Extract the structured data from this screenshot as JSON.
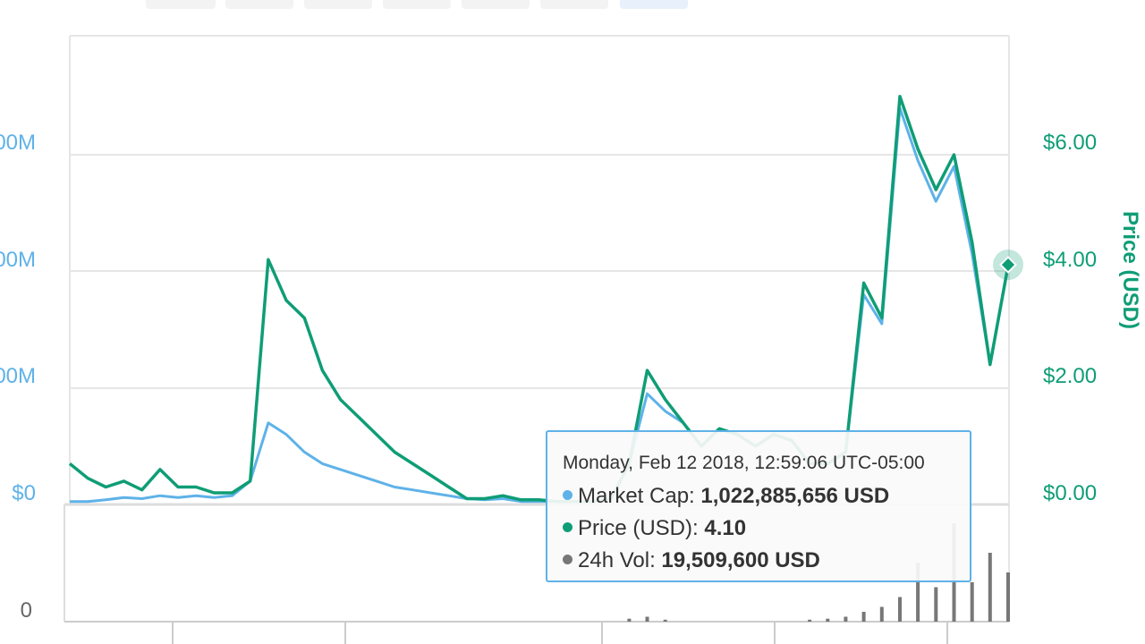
{
  "chart_data": {
    "type": "line",
    "left_axis": {
      "ticks": [
        "00M",
        "00M",
        "00M",
        "$0"
      ],
      "values": [
        null,
        null,
        null,
        0
      ]
    },
    "right_axis": {
      "title": "Price (USD)",
      "ticks": [
        "$6.00",
        "$4.00",
        "$2.00",
        "$0.00"
      ],
      "values": [
        6,
        4,
        2,
        0
      ],
      "ylim": [
        0,
        6
      ]
    },
    "volume_axis": {
      "ticks": [
        "0"
      ]
    },
    "series": [
      {
        "name": "Price (USD)",
        "color": "#0f9d76",
        "values": [
          0.7,
          0.45,
          0.3,
          0.4,
          0.25,
          0.6,
          0.3,
          0.3,
          0.2,
          0.2,
          0.4,
          4.2,
          3.5,
          3.2,
          2.3,
          1.8,
          1.5,
          1.2,
          0.9,
          0.7,
          0.5,
          0.3,
          0.1,
          0.1,
          0.15,
          0.08,
          0.08,
          0.05,
          0.05,
          0.05,
          0.1,
          0.7,
          2.3,
          1.8,
          1.4,
          1.0,
          1.3,
          1.2,
          1.0,
          1.2,
          1.1,
          0.7,
          0.7,
          0.9,
          3.8,
          3.2,
          7.0,
          6.1,
          5.4,
          6.0,
          4.5,
          2.4,
          4.1
        ]
      },
      {
        "name": "Market Cap",
        "color": "#5eb2e8",
        "values": [
          0.05,
          0.05,
          0.08,
          0.12,
          0.1,
          0.15,
          0.12,
          0.15,
          0.12,
          0.15,
          0.4,
          1.4,
          1.2,
          0.9,
          0.7,
          0.6,
          0.5,
          0.4,
          0.3,
          0.25,
          0.2,
          0.15,
          0.1,
          0.08,
          0.1,
          0.05,
          0.05,
          0.05,
          0.05,
          0.05,
          0.1,
          0.7,
          1.9,
          1.6,
          1.4,
          1.0,
          1.3,
          1.2,
          1.0,
          1.2,
          1.1,
          0.7,
          0.7,
          0.9,
          3.6,
          3.1,
          6.8,
          5.9,
          5.2,
          5.8,
          4.3,
          2.4,
          4.1
        ]
      },
      {
        "name": "24h Vol",
        "color": "#777777",
        "values": [
          0,
          0,
          0,
          0,
          0,
          0,
          0,
          0,
          0,
          0,
          0,
          0,
          0,
          0,
          0,
          0,
          0,
          0,
          0,
          0,
          0,
          0,
          0,
          0,
          0,
          0,
          0,
          0,
          0,
          0,
          0,
          0.03,
          0.05,
          0.02,
          0,
          0,
          0,
          0,
          0,
          0,
          0,
          0.02,
          0.03,
          0.05,
          0.1,
          0.15,
          0.25,
          0.6,
          0.35,
          1.0,
          0.4,
          0.7,
          0.5
        ]
      }
    ],
    "tooltip": {
      "date": "Monday, Feb 12 2018, 12:59:06 UTC-05:00",
      "rows": [
        {
          "label": "Market Cap:",
          "value": "1,022,885,656 USD",
          "color": "#5eb2e8"
        },
        {
          "label": "Price (USD):",
          "value": "4.10",
          "color": "#0f9d76"
        },
        {
          "label": "24h Vol:",
          "value": "19,509,600 USD",
          "color": "#777777"
        }
      ]
    },
    "grid": true,
    "legend": "none"
  },
  "colors": {
    "price": "#0f9d76",
    "market_cap": "#5eb2e8",
    "volume": "#777777",
    "grid": "#e6e6e6",
    "tooltip_border": "#5eb2e8"
  }
}
